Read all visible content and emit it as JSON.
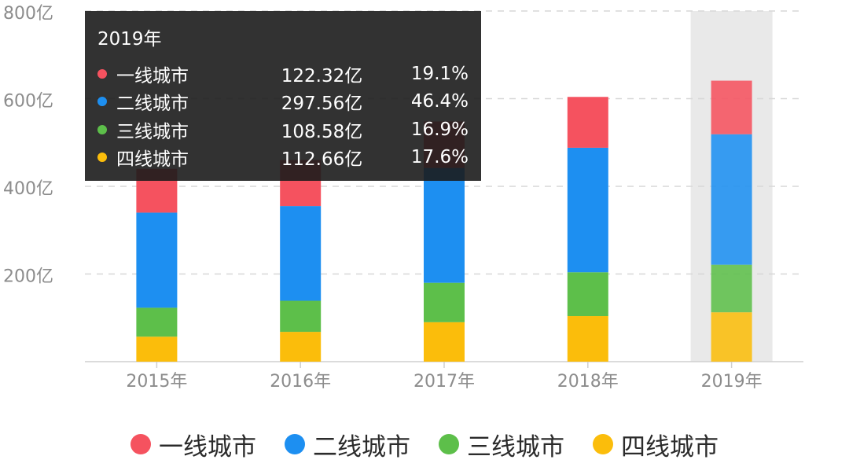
{
  "chart_data": {
    "type": "bar",
    "stacked": true,
    "categories": [
      "2015年",
      "2016年",
      "2017年",
      "2018年",
      "2019年"
    ],
    "y_ticks": [
      "800亿",
      "600亿",
      "400亿",
      "200亿"
    ],
    "y_tick_values": [
      800,
      600,
      400,
      200
    ],
    "ylim": [
      0,
      800
    ],
    "grid": true,
    "legend_position": "bottom",
    "highlighted_category_index": 4,
    "series": [
      {
        "name": "四线城市",
        "color": "#fbbd0b",
        "values": [
          57,
          68,
          90,
          104,
          112.66
        ]
      },
      {
        "name": "三线城市",
        "color": "#5dbf4a",
        "values": [
          66,
          71,
          90,
          100,
          108.58
        ]
      },
      {
        "name": "二线城市",
        "color": "#1d8ff1",
        "values": [
          217,
          216,
          262,
          284,
          297.56
        ]
      },
      {
        "name": "一线城市",
        "color": "#f5525f",
        "values": [
          100,
          105,
          106,
          116,
          122.32
        ]
      }
    ]
  },
  "tooltip": {
    "title": "2019年",
    "rows": [
      {
        "name": "一线城市",
        "value": "122.32亿",
        "percent": "19.1%",
        "color": "#f5525f"
      },
      {
        "name": "二线城市",
        "value": "297.56亿",
        "percent": "46.4%",
        "color": "#1d8ff1"
      },
      {
        "name": "三线城市",
        "value": "108.58亿",
        "percent": "16.9%",
        "color": "#5dbf4a"
      },
      {
        "name": "四线城市",
        "value": "112.66亿",
        "percent": "17.6%",
        "color": "#fbbd0b"
      }
    ]
  },
  "legend": [
    {
      "name": "一线城市",
      "color": "#f5525f"
    },
    {
      "name": "二线城市",
      "color": "#1d8ff1"
    },
    {
      "name": "三线城市",
      "color": "#5dbf4a"
    },
    {
      "name": "四线城市",
      "color": "#fbbd0b"
    }
  ],
  "colors": {
    "grid": "#d7d7d7",
    "axis": "#cfcfcf",
    "tick_text": "#8c8c8c",
    "highlight_band": "#e9e9e9",
    "tooltip_bg": "#1c1c1c"
  }
}
